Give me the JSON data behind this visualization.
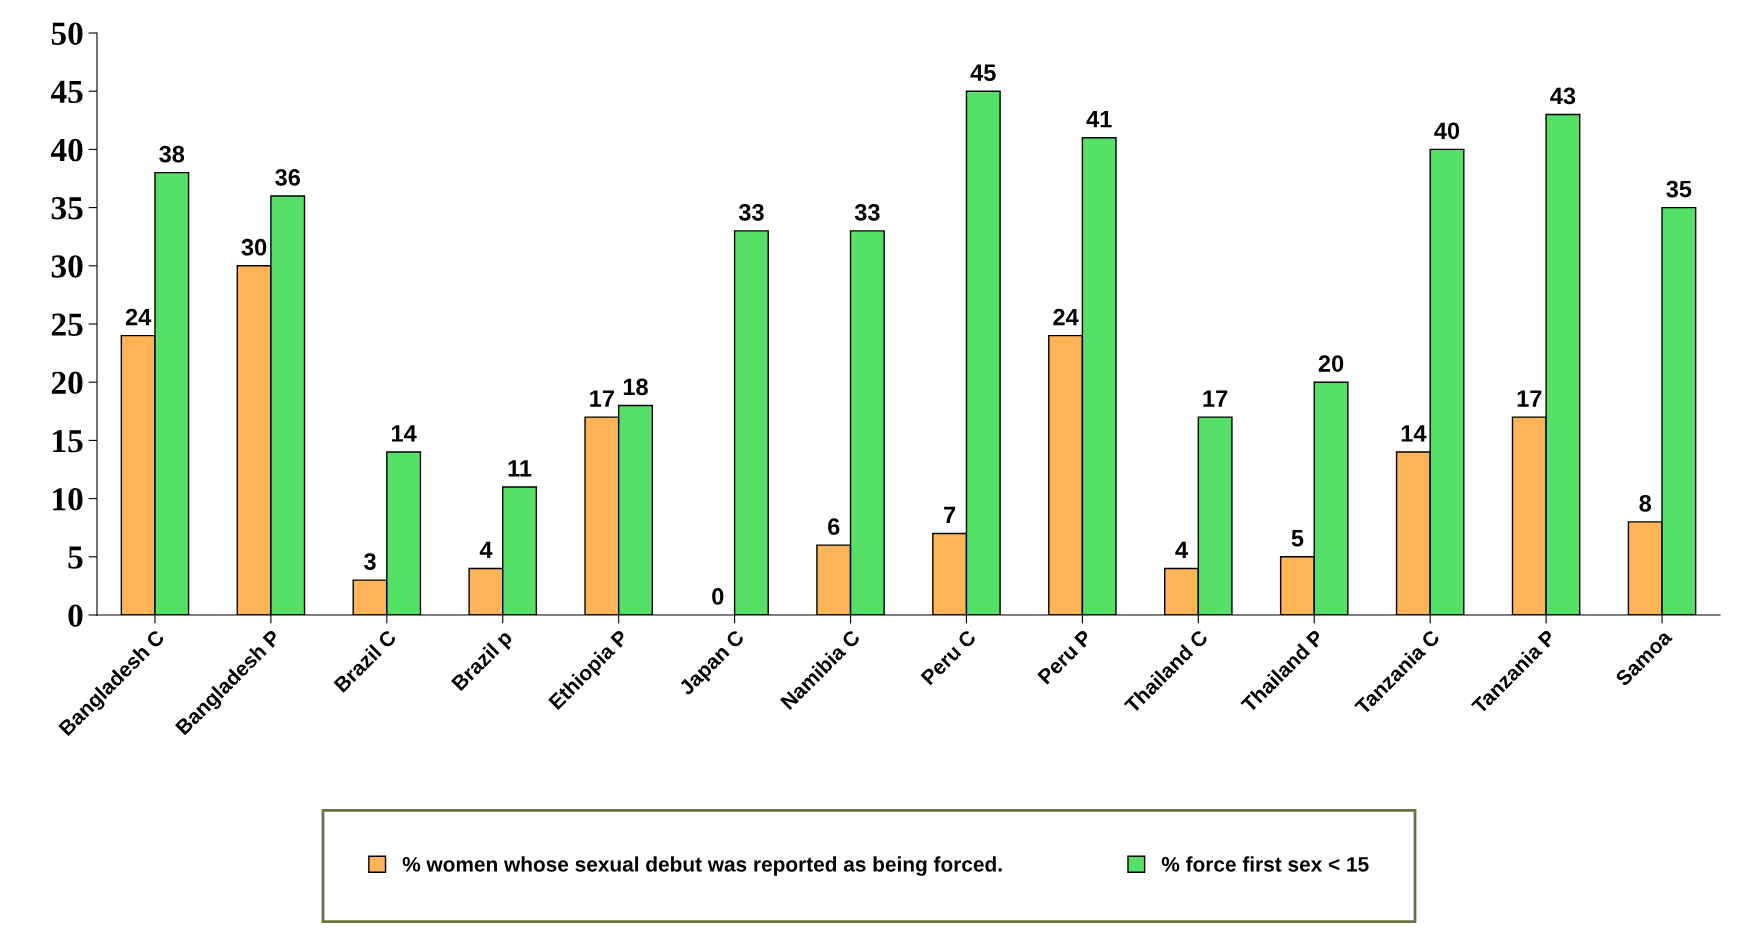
{
  "chart_data": {
    "type": "bar",
    "categories": [
      "Bangladesh C",
      "Bangladesh P",
      "Brazil C",
      "Brazil p",
      "Ethiopia P",
      "Japan C",
      "Namibia C",
      "Peru C",
      "Peru P",
      "Thailand C",
      "Thailand P",
      "Tanzania C",
      "Tanzania P",
      "Samoa"
    ],
    "series": [
      {
        "name": "% women whose sexual debut was reported as being forced.",
        "color": "#ffb557",
        "values": [
          24,
          30,
          3,
          4,
          17,
          0,
          6,
          7,
          24,
          4,
          5,
          14,
          17,
          8
        ]
      },
      {
        "name": "% force first sex < 15",
        "color": "#55e067",
        "values": [
          38,
          36,
          14,
          11,
          18,
          33,
          33,
          45,
          41,
          17,
          20,
          40,
          43,
          35
        ]
      }
    ],
    "ylim": [
      0,
      50
    ],
    "yticks": [
      0,
      5,
      10,
      15,
      20,
      25,
      30,
      35,
      40,
      45,
      50
    ],
    "data_labels": true,
    "grid": false,
    "legend": "bottom"
  }
}
